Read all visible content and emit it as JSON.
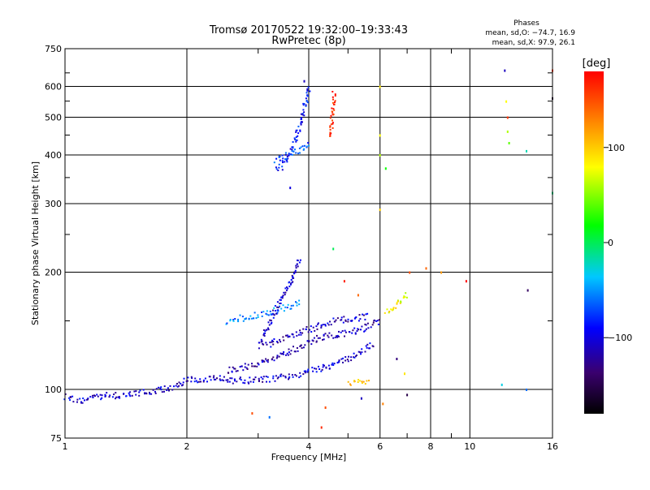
{
  "title": "Tromsø 20170522 19:32:00–19:33:43",
  "subtitle": "RwPretec (8p)",
  "phases_box": {
    "heading": "Phases",
    "line1": "mean, sd,O: −74.7, 16.9",
    "line2": "mean, sd,X:  97.9, 26.1"
  },
  "colorbar": {
    "label": "[deg]",
    "ticks": [
      "100",
      "0",
      "−100"
    ],
    "tick_values": [
      100,
      0,
      -100
    ],
    "range": [
      -180,
      180
    ],
    "stops": [
      "#000000",
      "#3a006e",
      "#0000ff",
      "#00c8ff",
      "#00ff00",
      "#ffff00",
      "#ff8000",
      "#ff0000"
    ]
  },
  "chart_data": {
    "type": "scatter",
    "title": "Tromsø 20170522 19:32:00–19:33:43",
    "subtitle": "RwPretec (8p)",
    "xlabel": "Frequency [MHz]",
    "ylabel": "Stationary phase Virtual Height [km]",
    "x_scale": "log",
    "y_scale": "log",
    "xlim": [
      1,
      16
    ],
    "ylim": [
      75,
      750
    ],
    "x_ticks": [
      1,
      2,
      4,
      6,
      8,
      10,
      16
    ],
    "x_tick_labels": [
      "1",
      "2",
      "4",
      "6",
      "8",
      "10",
      "16"
    ],
    "y_ticks": [
      75,
      100,
      200,
      300,
      400,
      500,
      600,
      750
    ],
    "y_tick_labels": [
      "75",
      "100",
      "200",
      "300",
      "400",
      "500",
      "600",
      "750"
    ],
    "grid": true,
    "color_quantity": "phase [deg]",
    "traces": [
      {
        "x": [
          1.0,
          1.05,
          1.1,
          1.2,
          1.3,
          1.4,
          1.5,
          1.6,
          1.7,
          1.8,
          1.9,
          2.0,
          2.2,
          2.4,
          2.6,
          2.8,
          3.0,
          3.2,
          3.4,
          3.6,
          3.8,
          4.0,
          4.3,
          4.6,
          5.0,
          5.4,
          5.8
        ],
        "y": [
          96,
          95,
          94,
          96,
          97,
          97,
          98,
          99,
          100,
          101,
          103,
          106,
          107,
          107,
          106,
          106,
          106,
          107,
          108,
          109,
          110,
          112,
          114,
          117,
          120,
          126,
          132
        ],
        "phase": -105
      },
      {
        "x": [
          2.5,
          2.7,
          2.9,
          3.1,
          3.3,
          3.5,
          3.7,
          3.9,
          4.2,
          4.5,
          4.8,
          5.2,
          5.6,
          6.0
        ],
        "y": [
          112,
          114,
          116,
          118,
          121,
          124,
          128,
          131,
          136,
          138,
          140,
          142,
          146,
          152
        ],
        "phase": -115
      },
      {
        "x": [
          2.5,
          2.7,
          2.9,
          3.1,
          3.3,
          3.5,
          3.7,
          3.8
        ],
        "y": [
          150,
          153,
          155,
          158,
          160,
          163,
          166,
          168
        ],
        "phase": -55
      },
      {
        "x": [
          3.1,
          3.3,
          3.5,
          3.7,
          3.9,
          4.2,
          4.5,
          4.8,
          5.2,
          5.6
        ],
        "y": [
          130,
          133,
          136,
          139,
          142,
          146,
          150,
          152,
          153,
          155
        ],
        "phase": -110
      },
      {
        "x": [
          3.0,
          3.1,
          3.2,
          3.3,
          3.4,
          3.5,
          3.6,
          3.7,
          3.8
        ],
        "y": [
          130,
          140,
          150,
          160,
          170,
          180,
          190,
          205,
          220
        ],
        "phase": -105
      },
      {
        "x": [
          6.2,
          6.4,
          6.6,
          6.8,
          7.0
        ],
        "y": [
          158,
          163,
          168,
          172,
          176
        ],
        "phase": 80
      },
      {
        "x": [
          5.0,
          5.2,
          5.4,
          5.6
        ],
        "y": [
          104,
          105,
          105,
          106
        ],
        "phase": 110
      },
      {
        "x": [
          3.3,
          3.4,
          3.5,
          3.6,
          3.7,
          3.8,
          3.9,
          4.0
        ],
        "y": [
          365,
          375,
          390,
          410,
          440,
          480,
          540,
          600
        ],
        "phase": -90
      },
      {
        "x": [
          3.3,
          3.5,
          3.7,
          3.9,
          4.0
        ],
        "y": [
          390,
          400,
          410,
          420,
          430
        ],
        "phase": -70
      },
      {
        "x": [
          4.5,
          4.52,
          4.55,
          4.58,
          4.6
        ],
        "y": [
          450,
          470,
          500,
          540,
          580
        ],
        "phase": 165
      }
    ],
    "points": [
      {
        "x": 3.9,
        "y": 620,
        "phase": -110
      },
      {
        "x": 3.6,
        "y": 330,
        "phase": -100
      },
      {
        "x": 4.4,
        "y": 90,
        "phase": 150
      },
      {
        "x": 3.2,
        "y": 85,
        "phase": -60
      },
      {
        "x": 4.3,
        "y": 80,
        "phase": 165
      },
      {
        "x": 2.9,
        "y": 87,
        "phase": 150
      },
      {
        "x": 6.0,
        "y": 600,
        "phase": 90
      },
      {
        "x": 6.0,
        "y": 450,
        "phase": 80
      },
      {
        "x": 6.0,
        "y": 400,
        "phase": 60
      },
      {
        "x": 6.2,
        "y": 370,
        "phase": 20
      },
      {
        "x": 6.0,
        "y": 290,
        "phase": 100
      },
      {
        "x": 7.1,
        "y": 200,
        "phase": 150
      },
      {
        "x": 7.8,
        "y": 205,
        "phase": 140
      },
      {
        "x": 8.5,
        "y": 200,
        "phase": 120
      },
      {
        "x": 9.8,
        "y": 190,
        "phase": 180
      },
      {
        "x": 6.6,
        "y": 120,
        "phase": -130
      },
      {
        "x": 6.9,
        "y": 110,
        "phase": 90
      },
      {
        "x": 7.0,
        "y": 97,
        "phase": -150
      },
      {
        "x": 5.4,
        "y": 95,
        "phase": -110
      },
      {
        "x": 6.1,
        "y": 92,
        "phase": 130
      },
      {
        "x": 12.2,
        "y": 660,
        "phase": -110
      },
      {
        "x": 12.3,
        "y": 550,
        "phase": 80
      },
      {
        "x": 12.4,
        "y": 500,
        "phase": 160
      },
      {
        "x": 12.4,
        "y": 460,
        "phase": 60
      },
      {
        "x": 12.5,
        "y": 430,
        "phase": 40
      },
      {
        "x": 13.8,
        "y": 410,
        "phase": -20
      },
      {
        "x": 13.9,
        "y": 180,
        "phase": -140
      },
      {
        "x": 12.0,
        "y": 103,
        "phase": -30
      },
      {
        "x": 13.8,
        "y": 100,
        "phase": -60
      },
      {
        "x": 16.0,
        "y": 660,
        "phase": 160
      },
      {
        "x": 16.0,
        "y": 560,
        "phase": -160
      },
      {
        "x": 16.0,
        "y": 320,
        "phase": -10
      },
      {
        "x": 4.6,
        "y": 230,
        "phase": 0
      },
      {
        "x": 4.9,
        "y": 190,
        "phase": 170
      },
      {
        "x": 5.3,
        "y": 175,
        "phase": 140
      }
    ]
  }
}
